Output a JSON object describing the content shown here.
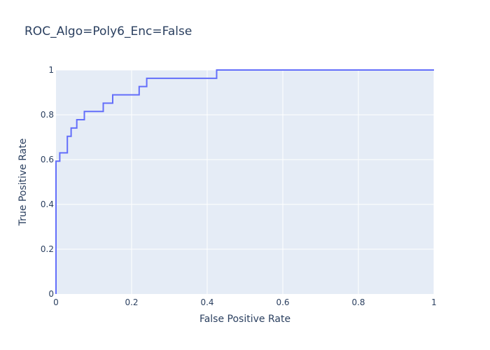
{
  "chart_data": {
    "type": "line",
    "title": "ROC_Algo=Poly6_Enc=False",
    "xlabel": "False Positive Rate",
    "ylabel": "True Positive Rate",
    "xlim": [
      0,
      1
    ],
    "ylim": [
      0,
      1
    ],
    "x_ticks": [
      "0",
      "0.2",
      "0.4",
      "0.6",
      "0.8",
      "1"
    ],
    "y_ticks": [
      "0",
      "0.2",
      "0.4",
      "0.6",
      "0.8",
      "1"
    ],
    "grid": true,
    "line_color": "#636efa",
    "plot_bg": "#e5ecf6",
    "series": [
      {
        "x": [
          0,
          0,
          0.01,
          0.01,
          0.03,
          0.03,
          0.04,
          0.04,
          0.055,
          0.055,
          0.075,
          0.075,
          0.125,
          0.125,
          0.15,
          0.15,
          0.22,
          0.22,
          0.24,
          0.24,
          0.425,
          0.425,
          1
        ],
        "y": [
          0,
          0.593,
          0.593,
          0.63,
          0.63,
          0.704,
          0.704,
          0.741,
          0.741,
          0.778,
          0.778,
          0.815,
          0.815,
          0.852,
          0.852,
          0.889,
          0.889,
          0.926,
          0.926,
          0.963,
          0.963,
          1,
          1
        ]
      }
    ]
  }
}
